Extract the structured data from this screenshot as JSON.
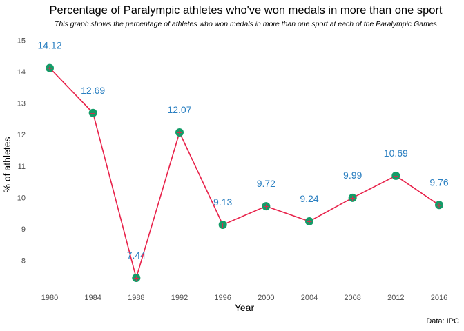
{
  "chart_data": {
    "type": "line",
    "title": "Percentage of Paralympic athletes who've won medals in more than one sport",
    "subtitle": "This graph shows the percentage of athletes who won medals in more than one sport at each of the Paralympic Games",
    "xlabel": "Year",
    "ylabel": "% of athletes",
    "caption": "Data: IPC",
    "x": [
      1980,
      1984,
      1988,
      1992,
      1996,
      2000,
      2004,
      2008,
      2012,
      2016
    ],
    "series": [
      {
        "values": [
          14.12,
          12.69,
          7.44,
          12.07,
          9.13,
          9.72,
          9.24,
          9.99,
          10.69,
          9.76
        ]
      }
    ],
    "data_labels": [
      "14.12",
      "12.69",
      "7.44",
      "12.07",
      "9.13",
      "9.72",
      "9.24",
      "9.99",
      "10.69",
      "9.76"
    ],
    "x_ticks": [
      "1980",
      "1984",
      "1988",
      "1992",
      "1996",
      "2000",
      "2004",
      "2008",
      "2012",
      "2016"
    ],
    "y_ticks": [
      "8",
      "9",
      "10",
      "11",
      "12",
      "13",
      "14",
      "15"
    ],
    "ylim": [
      7.1,
      15.2
    ],
    "grid": false,
    "legend": "none",
    "colors": {
      "line": "#e8224a",
      "point": "#139c68",
      "label": "#2a7fc1"
    }
  }
}
